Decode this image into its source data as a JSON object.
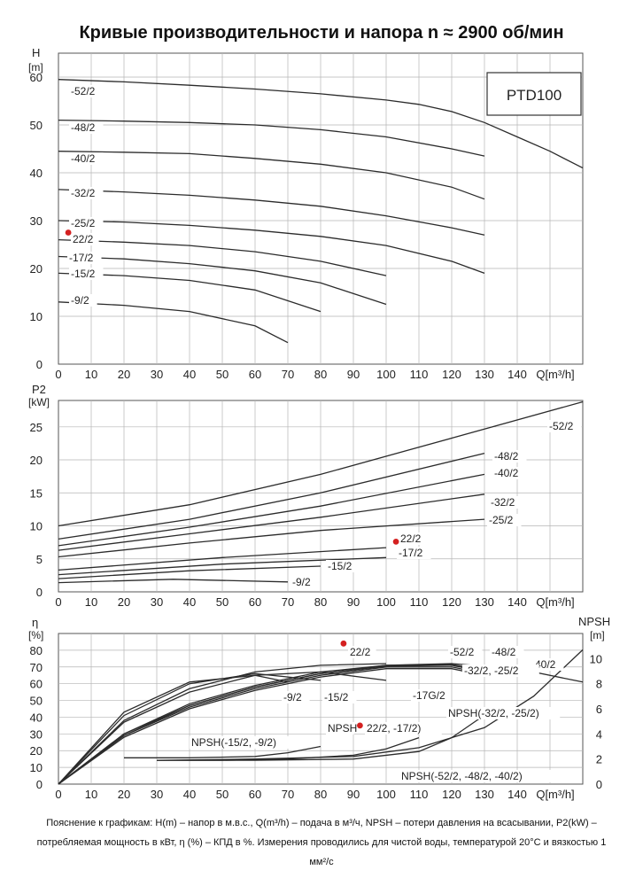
{
  "page": {
    "title": "Кривые производительности и напора n ≈ 2900 об/мин",
    "note": "Пояснение к графикам: H(m) – напор в м.в.с., Q(m³/h) – подача в м³/ч, NPSH – потери давления на всасывании, P2(kW) – потребляемая мощность в кВт, η (%) – КПД в %. Измерения проводились для чистой воды, температурой 20°C и вязкостью 1 мм²/с"
  },
  "colors": {
    "curve": "#2b2b2b",
    "grid": "#b5b5b5",
    "axis": "#555555",
    "marker": "#d42020"
  },
  "chart_data": [
    {
      "type": "line",
      "title": "",
      "model_box": "PTD100",
      "ylabel_top": "H",
      "ylabel_unit": "[m]",
      "xlabel": "Q[m³/h]",
      "xlim": [
        0,
        160
      ],
      "ylim": [
        0,
        65
      ],
      "x_ticks": [
        0,
        10,
        20,
        30,
        40,
        50,
        60,
        70,
        80,
        90,
        100,
        110,
        120,
        130,
        140
      ],
      "y_ticks": [
        0,
        10,
        20,
        30,
        40,
        50,
        60
      ],
      "grid": true,
      "series": [
        {
          "name": "-52/2",
          "x": [
            0,
            20,
            40,
            60,
            80,
            100,
            110,
            120,
            130,
            140,
            150,
            160
          ],
          "y": [
            59.5,
            59,
            58.3,
            57.5,
            56.5,
            55.2,
            54.3,
            52.8,
            50.5,
            47.5,
            44.5,
            41
          ]
        },
        {
          "name": "-48/2",
          "x": [
            0,
            20,
            40,
            60,
            80,
            100,
            120,
            130
          ],
          "y": [
            51,
            50.8,
            50.5,
            50,
            49,
            47.5,
            45,
            43.5
          ]
        },
        {
          "name": "-40/2",
          "x": [
            0,
            20,
            40,
            60,
            80,
            100,
            120,
            130
          ],
          "y": [
            44.5,
            44.3,
            44,
            43,
            41.8,
            40,
            37,
            34.5
          ]
        },
        {
          "name": "-32/2",
          "x": [
            0,
            20,
            40,
            60,
            80,
            100,
            120,
            130
          ],
          "y": [
            36.5,
            36,
            35.3,
            34.3,
            33,
            31,
            28.5,
            27
          ]
        },
        {
          "name": "-25/2",
          "x": [
            0,
            20,
            40,
            60,
            80,
            100,
            120,
            130
          ],
          "y": [
            30,
            29.7,
            29,
            28,
            26.7,
            24.8,
            21.5,
            19
          ]
        },
        {
          "name": "22/2",
          "x": [
            0,
            20,
            40,
            60,
            80,
            100
          ],
          "y": [
            26,
            25.5,
            24.8,
            23.5,
            21.5,
            18.5
          ]
        },
        {
          "name": "-17/2",
          "x": [
            0,
            20,
            40,
            60,
            80,
            100
          ],
          "y": [
            22.5,
            22,
            21,
            19.5,
            17,
            12.5
          ]
        },
        {
          "name": "-15/2",
          "x": [
            0,
            20,
            40,
            60,
            80
          ],
          "y": [
            19,
            18.5,
            17.5,
            15.5,
            11
          ]
        },
        {
          "name": "-9/2",
          "x": [
            0,
            20,
            40,
            60,
            70
          ],
          "y": [
            13,
            12.3,
            11,
            8,
            4.5
          ]
        }
      ],
      "series_labels": [
        "-52/2",
        "-48/2",
        "-40/2",
        "-32/2",
        "-25/2",
        "22/2",
        "-17/2",
        "-15/2",
        "-9/2"
      ],
      "marker": {
        "label": "22/2",
        "x": 3,
        "y": 27.5
      }
    },
    {
      "type": "line",
      "title": "",
      "ylabel_top": "P2",
      "ylabel_unit": "[kW]",
      "xlabel": "Q[m³/h]",
      "xlim": [
        0,
        160
      ],
      "ylim": [
        0,
        29
      ],
      "x_ticks": [
        0,
        10,
        20,
        30,
        40,
        50,
        60,
        70,
        80,
        90,
        100,
        110,
        120,
        130,
        140
      ],
      "y_ticks": [
        0,
        5,
        10,
        15,
        20,
        25
      ],
      "grid": true,
      "series": [
        {
          "name": "-52/2",
          "x": [
            0,
            40,
            80,
            120,
            160
          ],
          "y": [
            10,
            13.2,
            17.8,
            23.3,
            28.8
          ]
        },
        {
          "name": "-48/2",
          "x": [
            0,
            40,
            80,
            130
          ],
          "y": [
            8,
            11,
            15,
            21
          ]
        },
        {
          "name": "-40/2",
          "x": [
            0,
            40,
            80,
            130
          ],
          "y": [
            7,
            9.8,
            13,
            17.8
          ]
        },
        {
          "name": "-32/2",
          "x": [
            0,
            40,
            80,
            130
          ],
          "y": [
            6.3,
            8.8,
            11.3,
            14.8
          ]
        },
        {
          "name": "-25/2",
          "x": [
            0,
            40,
            80,
            130
          ],
          "y": [
            5.3,
            7.4,
            9.3,
            11
          ]
        },
        {
          "name": "22/2",
          "x": [
            0,
            50,
            100
          ],
          "y": [
            3.3,
            5.2,
            6.7
          ]
        },
        {
          "name": "-17/2",
          "x": [
            0,
            50,
            100
          ],
          "y": [
            2.6,
            4.2,
            5.2
          ]
        },
        {
          "name": "-15/2",
          "x": [
            0,
            40,
            80
          ],
          "y": [
            2,
            3.2,
            3.9
          ]
        },
        {
          "name": "-9/2",
          "x": [
            0,
            35,
            70
          ],
          "y": [
            1.4,
            1.9,
            1.5
          ]
        }
      ],
      "series_labels": [
        "-52/2",
        "-48/2",
        "-40/2",
        "-32/2",
        "-25/2",
        "22/2",
        "-17/2",
        "-15/2",
        "-9/2"
      ],
      "marker": {
        "label": "22/2",
        "x": 103,
        "y": 7.6
      }
    },
    {
      "type": "line",
      "title": "",
      "ylabel_top": "η",
      "ylabel_unit": "[%]",
      "y2label_top": "NPSH",
      "y2label_unit": "[m]",
      "xlabel": "Q[m³/h]",
      "xlim": [
        0,
        160
      ],
      "ylim": [
        0,
        90
      ],
      "y2lim": [
        0,
        12
      ],
      "x_ticks": [
        0,
        10,
        20,
        30,
        40,
        50,
        60,
        70,
        80,
        90,
        100,
        110,
        120,
        130,
        140
      ],
      "y_ticks": [
        0,
        10,
        20,
        30,
        40,
        50,
        60,
        70,
        80
      ],
      "y2_ticks": [
        0,
        2,
        4,
        6,
        8,
        10
      ],
      "grid": true,
      "efficiency_series": [
        {
          "name": "-52/2",
          "x": [
            0,
            20,
            40,
            60,
            80,
            100,
            120,
            140,
            160
          ],
          "y": [
            0,
            30,
            47,
            58,
            66,
            71,
            72,
            69,
            61
          ]
        },
        {
          "name": "-48/2",
          "x": [
            0,
            20,
            40,
            60,
            80,
            100,
            120,
            130
          ],
          "y": [
            0,
            30,
            48,
            59,
            67,
            71,
            71.5,
            68
          ]
        },
        {
          "name": "-40/2",
          "x": [
            0,
            20,
            40,
            60,
            80,
            100,
            120,
            130
          ],
          "y": [
            0,
            29,
            47,
            58,
            66,
            70.5,
            71,
            67
          ]
        },
        {
          "name": "-32/2",
          "x": [
            0,
            20,
            40,
            60,
            80,
            100,
            120,
            130
          ],
          "y": [
            0,
            29,
            46,
            57,
            65,
            70,
            70,
            66
          ]
        },
        {
          "name": "-25/2",
          "x": [
            0,
            20,
            40,
            60,
            80,
            100,
            120,
            130
          ],
          "y": [
            0,
            28,
            45,
            56,
            64,
            69,
            69,
            65
          ]
        },
        {
          "name": "22/2",
          "x": [
            0,
            20,
            40,
            60,
            80,
            100
          ],
          "y": [
            0,
            38,
            57,
            67,
            71,
            72
          ]
        },
        {
          "name": "-17G/2",
          "x": [
            0,
            20,
            40,
            60,
            80,
            100
          ],
          "y": [
            0,
            37,
            55,
            65,
            67,
            62
          ]
        },
        {
          "name": "-15/2",
          "x": [
            0,
            20,
            40,
            60,
            80
          ],
          "y": [
            0,
            41,
            60,
            66,
            62
          ]
        },
        {
          "name": "-9/2",
          "x": [
            0,
            20,
            40,
            60,
            70
          ],
          "y": [
            0,
            43,
            61,
            65,
            61
          ]
        }
      ],
      "npsh_series": [
        {
          "name": "NPSH(-15/2, -9/2)",
          "x": [
            20,
            40,
            60,
            70,
            80
          ],
          "y": [
            2.1,
            2.1,
            2.2,
            2.5,
            3.0
          ]
        },
        {
          "name": "NPSH 22/2, -17/2",
          "x": [
            30,
            50,
            70,
            90,
            100,
            110
          ],
          "y": [
            1.9,
            1.9,
            2.0,
            2.3,
            2.8,
            3.7
          ]
        },
        {
          "name": "NPSH(-32/2, -25/2)",
          "x": [
            30,
            60,
            90,
            110,
            120,
            130
          ],
          "y": [
            1.9,
            1.9,
            2.0,
            2.6,
            3.7,
            5.5
          ]
        },
        {
          "name": "NPSH(-52/2, -48/2, -40/2)",
          "x": [
            30,
            60,
            90,
            110,
            130,
            145,
            160
          ],
          "y": [
            1.9,
            2.0,
            2.2,
            2.9,
            4.5,
            7.0,
            10.7
          ]
        }
      ],
      "series_labels": [
        "-52/2",
        "-48/2",
        "-40/2",
        "-32/2, -25/2",
        "22/2",
        "-17G/2",
        "-15/2",
        "-9/2",
        "NPSH(-15/2, -9/2)",
        "NPSH",
        "22/2, -17/2)",
        "NPSH(-32/2, -25/2)",
        "NPSH(-52/2, -48/2, -40/2)"
      ],
      "markers": [
        {
          "label": "22/2",
          "x": 87,
          "y": 84
        },
        {
          "x": 92,
          "y": 35
        }
      ]
    }
  ]
}
